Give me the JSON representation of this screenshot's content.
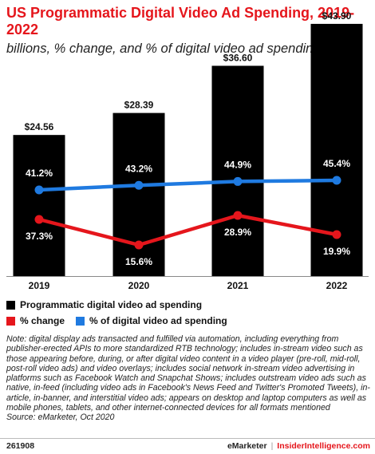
{
  "chart_data": {
    "type": "bar",
    "title": "US Programmatic Digital Video Ad Spending, 2019-2022",
    "subtitle": "billions, % change, and % of digital video ad spending",
    "categories": [
      "2019",
      "2020",
      "2021",
      "2022"
    ],
    "series": [
      {
        "name": "Programmatic digital video ad spending",
        "type": "bar",
        "color": "#000000",
        "values": [
          24.56,
          28.39,
          36.6,
          43.9
        ],
        "labels": [
          "$24.56",
          "$28.39",
          "$36.60",
          "$43.90"
        ]
      },
      {
        "name": "% change",
        "type": "line",
        "color": "#e5161c",
        "values": [
          37.3,
          15.6,
          28.9,
          19.9
        ],
        "labels": [
          "37.3%",
          "15.6%",
          "28.9%",
          "19.9%"
        ]
      },
      {
        "name": "% of digital video ad spending",
        "type": "line",
        "color": "#1f7ae0",
        "values": [
          41.2,
          43.2,
          44.9,
          45.4
        ],
        "labels": [
          "41.2%",
          "43.2%",
          "44.9%",
          "45.4%"
        ]
      }
    ],
    "grid": false,
    "legend_position": "bottom-left"
  },
  "note": "Note: digital display ads transacted and fulfilled via automation, including everything from publisher-erected APIs to more standardized RTB technology; includes in-stream video such as those appearing before, during, or after digital video content in a video player (pre-roll, mid-roll, post-roll video ads) and video overlays; includes social network in-stream video advertising in platforms such as Facebook Watch and Snapchat Shows; includes outstream video ads such as native, in-feed (including video ads in Facebook's News Feed and Twitter's Promoted Tweets), in-article, in-banner, and interstitial video ads; appears on desktop and laptop computers as well as mobile phones, tablets, and other internet-connected devices for all formats mentioned",
  "source": "Source: eMarketer, Oct 2020",
  "footer": {
    "chart_id": "261908",
    "brand": "eMarketer",
    "separator": "|",
    "site": "InsiderIntelligence.com"
  }
}
